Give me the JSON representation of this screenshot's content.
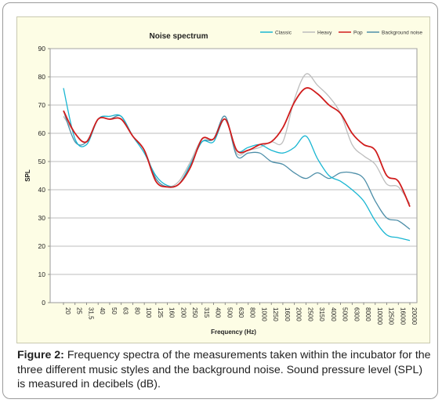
{
  "caption": {
    "label": "Figure 2:",
    "text": " Frequency spectra of the measurements taken within the incubator for the three different music styles and the background noise. Sound pressure level (SPL) is measured in decibels (dB)."
  },
  "chart_data": {
    "type": "line",
    "title": "Noise spectrum",
    "xlabel": "Frequency (Hz)",
    "ylabel": "SPL",
    "ylim": [
      0,
      90
    ],
    "yticks": [
      0,
      10,
      20,
      30,
      40,
      50,
      60,
      70,
      80,
      90
    ],
    "grid": "horizontal",
    "legend_position": "top-right",
    "categories": [
      "20",
      "25",
      "31,5",
      "40",
      "50",
      "63",
      "80",
      "100",
      "125",
      "160",
      "200",
      "250",
      "315",
      "400",
      "500",
      "630",
      "800",
      "1000",
      "1250",
      "1600",
      "2000",
      "2500",
      "3150",
      "4000",
      "5000",
      "6300",
      "8000",
      "10000",
      "12500",
      "16000",
      "20000"
    ],
    "series": [
      {
        "name": "Classic",
        "color": "#19b6d2",
        "values": [
          76,
          58,
          56,
          65,
          66,
          66,
          59,
          53,
          45,
          41.5,
          42,
          49,
          57,
          57,
          65,
          54,
          55,
          56,
          54,
          53,
          55,
          59,
          51,
          45,
          43,
          40,
          36,
          29,
          24,
          23,
          22
        ]
      },
      {
        "name": "Heavy",
        "color": "#bdbdbd",
        "values": [
          66,
          60,
          57,
          65,
          66,
          66,
          59,
          54,
          44,
          41,
          43,
          50,
          58,
          58,
          66,
          53,
          54,
          55,
          57,
          57,
          72,
          81,
          77,
          73,
          67,
          56,
          52,
          49,
          42,
          41,
          35
        ]
      },
      {
        "name": "Pop",
        "color": "#d01c1c",
        "values": [
          68,
          60,
          57,
          65,
          65,
          65,
          59,
          54,
          43,
          41,
          42,
          48,
          58,
          58,
          65,
          54,
          54,
          56,
          57,
          62,
          71,
          76,
          74,
          70,
          67,
          60,
          56,
          54,
          45,
          43,
          34
        ]
      },
      {
        "name": "Background noise",
        "color": "#4d8ea8",
        "values": [
          68,
          57,
          57,
          65,
          65,
          66,
          59,
          54,
          44,
          41,
          42,
          49,
          57,
          58,
          66,
          52,
          53,
          53,
          50,
          49,
          46,
          44,
          46,
          44,
          46,
          46,
          44,
          36,
          30,
          29,
          26
        ]
      }
    ]
  }
}
